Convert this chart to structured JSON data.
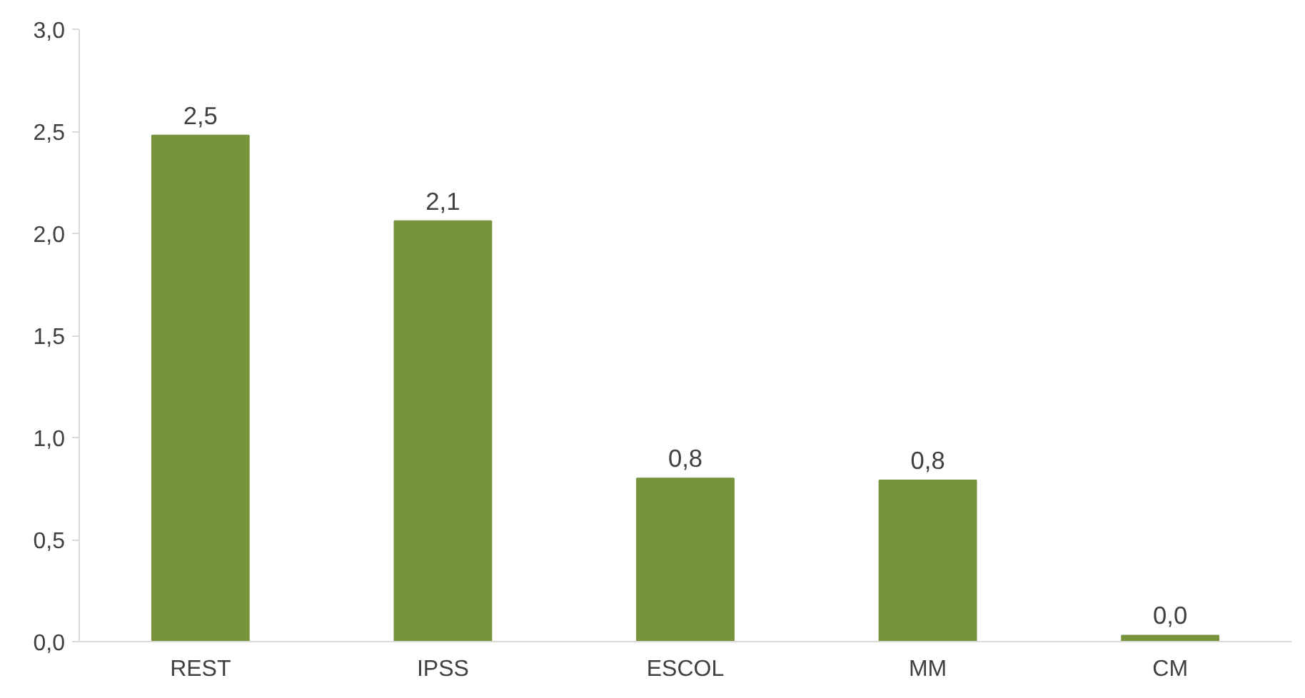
{
  "chart_data": {
    "type": "bar",
    "categories": [
      "REST",
      "IPSS",
      "ESCOL",
      "MM",
      "CM"
    ],
    "values": [
      2.48,
      2.06,
      0.8,
      0.79,
      0.03
    ],
    "value_labels": [
      "2,5",
      "2,1",
      "0,8",
      "0,8",
      "0,0"
    ],
    "color": "#77933c",
    "ylim": [
      0,
      3
    ],
    "yticks": [
      {
        "value": 0,
        "label": "0,0"
      },
      {
        "value": 0.5,
        "label": "0,5"
      },
      {
        "value": 1,
        "label": "1,0"
      },
      {
        "value": 1.5,
        "label": "1,5"
      },
      {
        "value": 2,
        "label": "2,0"
      },
      {
        "value": 2.5,
        "label": "2,5"
      },
      {
        "value": 3,
        "label": "3,0"
      }
    ],
    "grid": false
  }
}
